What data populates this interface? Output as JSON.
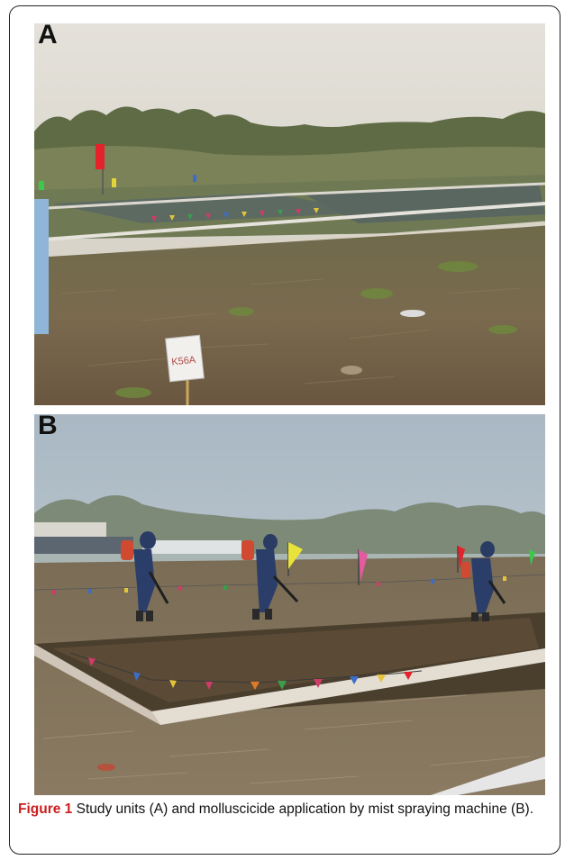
{
  "panels": [
    {
      "label": "A",
      "sign_text": "K56A",
      "photo": "Study units – grassy field with flagged plots and plastic barrier strips"
    },
    {
      "label": "B",
      "photo": "Three workers with backpack mist sprayers walking across plots bordered by colored flags"
    }
  ],
  "caption": {
    "figure_label": "Figure 1",
    "text": " Study units (A) and molluscicide application by mist spraying machine (B)."
  },
  "colors": {
    "sky_a": "#d8d6cf",
    "sky_b": "#b9c6cf",
    "ground": "#7c6a4d",
    "caption_label": "#cc1d1d"
  }
}
